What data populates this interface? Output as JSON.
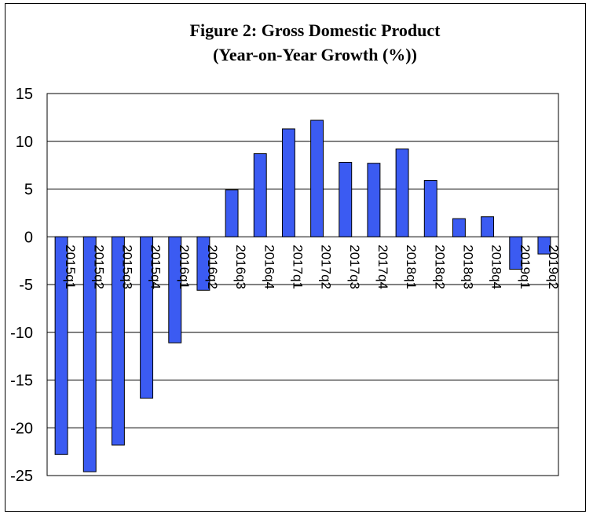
{
  "chart_data": {
    "type": "bar",
    "title": "Figure 2: Gross Domestic Product",
    "subtitle": "(Year-on-Year Growth (%))",
    "categories": [
      "2015q1",
      "2015q2",
      "2015q3",
      "2015q4",
      "2016q1",
      "2016q2",
      "2016q3",
      "2016q4",
      "2017q1",
      "2017q2",
      "2017q3",
      "2017q4",
      "2018q1",
      "2018q2",
      "2018q3",
      "2018q4",
      "2019q1",
      "2019q2"
    ],
    "values": [
      -22.8,
      -24.6,
      -21.8,
      -16.9,
      -11.1,
      -5.6,
      4.9,
      8.7,
      11.3,
      12.2,
      7.8,
      7.7,
      9.2,
      5.9,
      1.9,
      2.1,
      -3.4,
      -1.8
    ],
    "ylim": [
      -25,
      15
    ],
    "yticks": [
      15,
      10,
      5,
      0,
      -5,
      -10,
      -15,
      -20,
      -25
    ],
    "xlabel": "",
    "ylabel": "",
    "grid": true,
    "legend": "none",
    "colors": {
      "bar": "#3b5bf2",
      "bar_stroke": "#000000"
    }
  }
}
